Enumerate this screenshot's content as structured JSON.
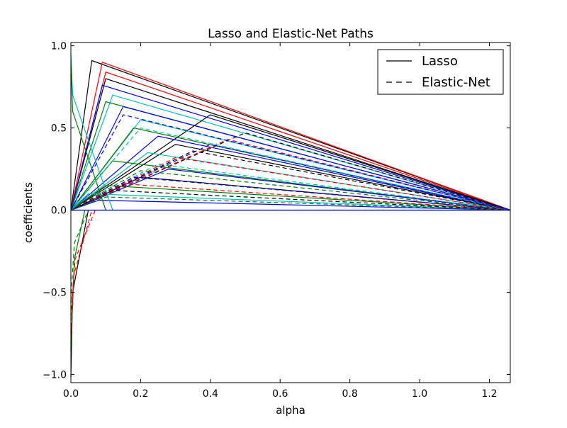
{
  "chart_data": {
    "type": "line",
    "title": "Lasso and Elastic-Net Paths",
    "xlabel": "alpha",
    "ylabel": "coefficients",
    "xlim": [
      0.0,
      1.26
    ],
    "ylim": [
      -1.05,
      1.02
    ],
    "xticks": [
      0.0,
      0.2,
      0.4,
      0.6,
      0.8,
      1.0,
      1.2
    ],
    "yticks": [
      1.0,
      0.5,
      0.0,
      -0.5,
      -1.0
    ],
    "x_tick_labels": [
      "0.0",
      "0.2",
      "0.4",
      "0.6",
      "0.8",
      "1.0",
      "1.2"
    ],
    "y_tick_labels": [
      "1.0",
      "0.5",
      "0.0",
      "−0.5",
      "−1.0"
    ],
    "grid": false,
    "legend_position": "top-right",
    "legend": [
      {
        "label": "Lasso",
        "style": "solid",
        "color": "#000000"
      },
      {
        "label": "Elastic-Net",
        "style": "dashed",
        "color": "#000000"
      }
    ],
    "path_colors": [
      "#0000ff",
      "#008000",
      "#ff0000",
      "#00bfbf",
      "#000000"
    ],
    "series": [
      {
        "method": "Lasso",
        "color": "#000000",
        "x": [
          0.0,
          0.06,
          1.26
        ],
        "y": [
          0.0,
          0.91,
          0.0
        ]
      },
      {
        "method": "Lasso",
        "color": "#ff0000",
        "x": [
          0.0,
          0.09,
          1.26
        ],
        "y": [
          0.0,
          0.9,
          0.0
        ]
      },
      {
        "method": "Lasso",
        "color": "#ff0000",
        "x": [
          0.0,
          0.1,
          1.26
        ],
        "y": [
          0.0,
          0.84,
          0.0
        ]
      },
      {
        "method": "Lasso",
        "color": "#000000",
        "x": [
          0.0,
          0.1,
          1.26
        ],
        "y": [
          0.0,
          0.8,
          0.0
        ]
      },
      {
        "method": "Lasso",
        "color": "#0000ff",
        "x": [
          0.0,
          0.09,
          1.26
        ],
        "y": [
          0.0,
          0.76,
          0.0
        ]
      },
      {
        "method": "Lasso",
        "color": "#00bfbf",
        "x": [
          0.0,
          0.12,
          1.26
        ],
        "y": [
          0.0,
          0.7,
          0.0
        ]
      },
      {
        "method": "Lasso",
        "color": "#008000",
        "x": [
          0.0,
          0.1,
          1.26
        ],
        "y": [
          0.0,
          0.66,
          0.0
        ]
      },
      {
        "method": "Lasso",
        "color": "#0000ff",
        "x": [
          0.0,
          0.15,
          1.26
        ],
        "y": [
          0.0,
          0.63,
          0.0
        ]
      },
      {
        "method": "Lasso",
        "color": "#000000",
        "x": [
          0.0,
          0.4,
          1.26
        ],
        "y": [
          0.0,
          0.58,
          0.0
        ]
      },
      {
        "method": "Lasso",
        "color": "#00bfbf",
        "x": [
          0.0,
          0.2,
          1.26
        ],
        "y": [
          0.0,
          0.55,
          0.0
        ]
      },
      {
        "method": "Lasso",
        "color": "#008000",
        "x": [
          0.0,
          0.18,
          1.26
        ],
        "y": [
          0.0,
          0.5,
          0.0
        ]
      },
      {
        "method": "Lasso",
        "color": "#0000ff",
        "x": [
          0.0,
          0.25,
          1.26
        ],
        "y": [
          0.0,
          0.45,
          0.0
        ]
      },
      {
        "method": "Lasso",
        "color": "#000000",
        "x": [
          0.0,
          0.3,
          1.26
        ],
        "y": [
          0.0,
          0.4,
          0.0
        ]
      },
      {
        "method": "Lasso",
        "color": "#00bfbf",
        "x": [
          0.0,
          0.22,
          1.26
        ],
        "y": [
          0.0,
          0.35,
          0.0
        ]
      },
      {
        "method": "Lasso",
        "color": "#008000",
        "x": [
          0.0,
          0.12,
          1.26
        ],
        "y": [
          0.0,
          0.3,
          0.0
        ]
      },
      {
        "method": "Lasso",
        "color": "#0000ff",
        "x": [
          0.0,
          0.28,
          1.26
        ],
        "y": [
          0.0,
          0.25,
          0.0
        ]
      },
      {
        "method": "Lasso",
        "color": "#000000",
        "x": [
          0.0,
          0.2,
          1.26
        ],
        "y": [
          0.0,
          0.2,
          0.0
        ]
      },
      {
        "method": "Lasso",
        "color": "#008000",
        "x": [
          0.0,
          0.1,
          1.26
        ],
        "y": [
          0.0,
          0.15,
          0.0
        ]
      },
      {
        "method": "Lasso",
        "color": "#00bfbf",
        "x": [
          0.0,
          0.05,
          1.26
        ],
        "y": [
          0.0,
          0.1,
          0.0
        ]
      },
      {
        "method": "Lasso",
        "color": "#0000ff",
        "x": [
          0.0,
          0.08,
          1.26
        ],
        "y": [
          0.0,
          0.06,
          0.0
        ]
      },
      {
        "method": "Lasso",
        "color": "#000000",
        "x": [
          0.0,
          0.005,
          0.05
        ],
        "y": [
          -1.02,
          -0.5,
          0.0
        ]
      },
      {
        "method": "Lasso",
        "color": "#008000",
        "x": [
          0.0,
          0.01,
          0.04
        ],
        "y": [
          -0.85,
          -0.3,
          0.0
        ]
      },
      {
        "method": "Lasso",
        "color": "#00bfbf",
        "x": [
          0.0,
          0.005,
          0.12
        ],
        "y": [
          0.95,
          0.7,
          0.0
        ]
      },
      {
        "method": "Lasso",
        "color": "#008000",
        "x": [
          0.0,
          0.005,
          0.1
        ],
        "y": [
          0.9,
          0.6,
          0.0
        ]
      },
      {
        "method": "Elastic-Net",
        "color": "#000000",
        "x": [
          0.0,
          0.5,
          1.26
        ],
        "y": [
          0.0,
          0.47,
          0.0
        ]
      },
      {
        "method": "Elastic-Net",
        "color": "#ff0000",
        "x": [
          0.0,
          0.45,
          1.26
        ],
        "y": [
          0.0,
          0.43,
          0.0
        ]
      },
      {
        "method": "Elastic-Net",
        "color": "#0000ff",
        "x": [
          0.0,
          0.4,
          1.26
        ],
        "y": [
          0.0,
          0.4,
          0.0
        ]
      },
      {
        "method": "Elastic-Net",
        "color": "#000000",
        "x": [
          0.0,
          0.35,
          1.26
        ],
        "y": [
          0.0,
          0.36,
          0.0
        ]
      },
      {
        "method": "Elastic-Net",
        "color": "#ff0000",
        "x": [
          0.0,
          0.3,
          1.26
        ],
        "y": [
          0.0,
          0.32,
          0.0
        ]
      },
      {
        "method": "Elastic-Net",
        "color": "#00bfbf",
        "x": [
          0.0,
          0.25,
          1.26
        ],
        "y": [
          0.0,
          0.28,
          0.0
        ]
      },
      {
        "method": "Elastic-Net",
        "color": "#008000",
        "x": [
          0.0,
          0.2,
          1.26
        ],
        "y": [
          0.0,
          0.24,
          0.0
        ]
      },
      {
        "method": "Elastic-Net",
        "color": "#0000ff",
        "x": [
          0.0,
          0.18,
          1.26
        ],
        "y": [
          0.0,
          0.2,
          0.0
        ]
      },
      {
        "method": "Elastic-Net",
        "color": "#ff0000",
        "x": [
          0.0,
          0.15,
          1.26
        ],
        "y": [
          0.0,
          0.16,
          0.0
        ]
      },
      {
        "method": "Elastic-Net",
        "color": "#000000",
        "x": [
          0.0,
          0.12,
          1.26
        ],
        "y": [
          0.0,
          0.12,
          0.0
        ]
      },
      {
        "method": "Elastic-Net",
        "color": "#008000",
        "x": [
          0.0,
          0.1,
          1.26
        ],
        "y": [
          0.0,
          0.08,
          0.0
        ]
      },
      {
        "method": "Elastic-Net",
        "color": "#00bfbf",
        "x": [
          0.0,
          0.2,
          1.26
        ],
        "y": [
          0.0,
          0.5,
          0.0
        ]
      },
      {
        "method": "Elastic-Net",
        "color": "#0000ff",
        "x": [
          0.0,
          0.15,
          1.26
        ],
        "y": [
          0.0,
          0.58,
          0.0
        ]
      },
      {
        "method": "Elastic-Net",
        "color": "#ff0000",
        "x": [
          0.0,
          0.008,
          0.06
        ],
        "y": [
          -0.8,
          -0.4,
          0.0
        ]
      },
      {
        "method": "Elastic-Net",
        "color": "#ff0000",
        "x": [
          0.0,
          0.012,
          0.07
        ],
        "y": [
          -0.65,
          -0.3,
          0.0
        ]
      },
      {
        "method": "Elastic-Net",
        "color": "#008000",
        "x": [
          0.0,
          0.01,
          0.05
        ],
        "y": [
          -0.55,
          -0.2,
          0.0
        ]
      }
    ]
  }
}
